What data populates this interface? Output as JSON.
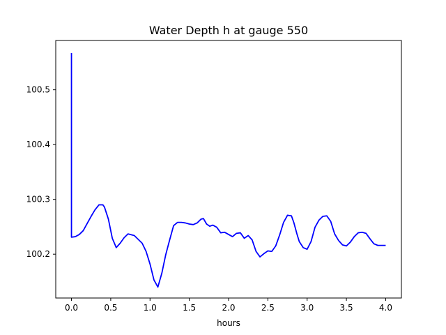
{
  "chart_data": {
    "type": "line",
    "title": "Water Depth h at gauge 550",
    "xlabel": "hours",
    "ylabel": "",
    "xlim": [
      -0.2,
      4.2
    ],
    "ylim": [
      100.12,
      100.59
    ],
    "grid": false,
    "xticks": [
      0.0,
      0.5,
      1.0,
      1.5,
      2.0,
      2.5,
      3.0,
      3.5,
      4.0
    ],
    "xtick_labels": [
      "0.0",
      "0.5",
      "1.0",
      "1.5",
      "2.0",
      "2.5",
      "3.0",
      "3.5",
      "4.0"
    ],
    "yticks": [
      100.2,
      100.3,
      100.4,
      100.5
    ],
    "ytick_labels": [
      "100.2",
      "100.3",
      "100.4",
      "100.5"
    ],
    "series": [
      {
        "color": "#0000ff",
        "x": [
          0.0,
          0.0,
          0.0,
          0.05,
          0.1,
          0.15,
          0.2,
          0.25,
          0.3,
          0.35,
          0.4,
          0.42,
          0.47,
          0.52,
          0.57,
          0.62,
          0.67,
          0.72,
          0.8,
          0.9,
          0.95,
          1.0,
          1.05,
          1.1,
          1.15,
          1.2,
          1.25,
          1.3,
          1.35,
          1.4,
          1.45,
          1.5,
          1.55,
          1.6,
          1.65,
          1.68,
          1.72,
          1.76,
          1.8,
          1.85,
          1.9,
          1.95,
          2.0,
          2.05,
          2.1,
          2.15,
          2.2,
          2.25,
          2.3,
          2.35,
          2.4,
          2.45,
          2.5,
          2.55,
          2.6,
          2.65,
          2.7,
          2.75,
          2.8,
          2.83,
          2.87,
          2.9,
          2.95,
          3.0,
          3.05,
          3.1,
          3.15,
          3.2,
          3.25,
          3.3,
          3.35,
          3.4,
          3.45,
          3.5,
          3.55,
          3.6,
          3.65,
          3.7,
          3.75,
          3.8,
          3.85,
          3.9,
          3.95,
          4.0
        ],
        "y": [
          100.567,
          100.567,
          100.231,
          100.232,
          100.236,
          100.243,
          100.256,
          100.269,
          100.281,
          100.29,
          100.29,
          100.286,
          100.264,
          100.229,
          100.212,
          100.22,
          100.23,
          100.237,
          100.234,
          100.22,
          100.205,
          100.182,
          100.153,
          100.14,
          100.165,
          100.199,
          100.226,
          100.252,
          100.258,
          100.258,
          100.257,
          100.255,
          100.254,
          100.257,
          100.264,
          100.265,
          100.255,
          100.251,
          100.253,
          100.249,
          100.239,
          100.24,
          100.236,
          100.232,
          100.238,
          100.239,
          100.229,
          100.234,
          100.226,
          100.205,
          100.195,
          100.201,
          100.206,
          100.205,
          100.215,
          100.235,
          100.258,
          100.271,
          100.27,
          100.258,
          100.237,
          100.223,
          100.212,
          100.209,
          100.223,
          100.249,
          100.262,
          100.269,
          100.27,
          100.26,
          100.237,
          100.225,
          100.217,
          100.215,
          100.222,
          100.232,
          100.239,
          100.24,
          100.238,
          100.228,
          100.219,
          100.216,
          100.216,
          100.216
        ]
      }
    ]
  }
}
